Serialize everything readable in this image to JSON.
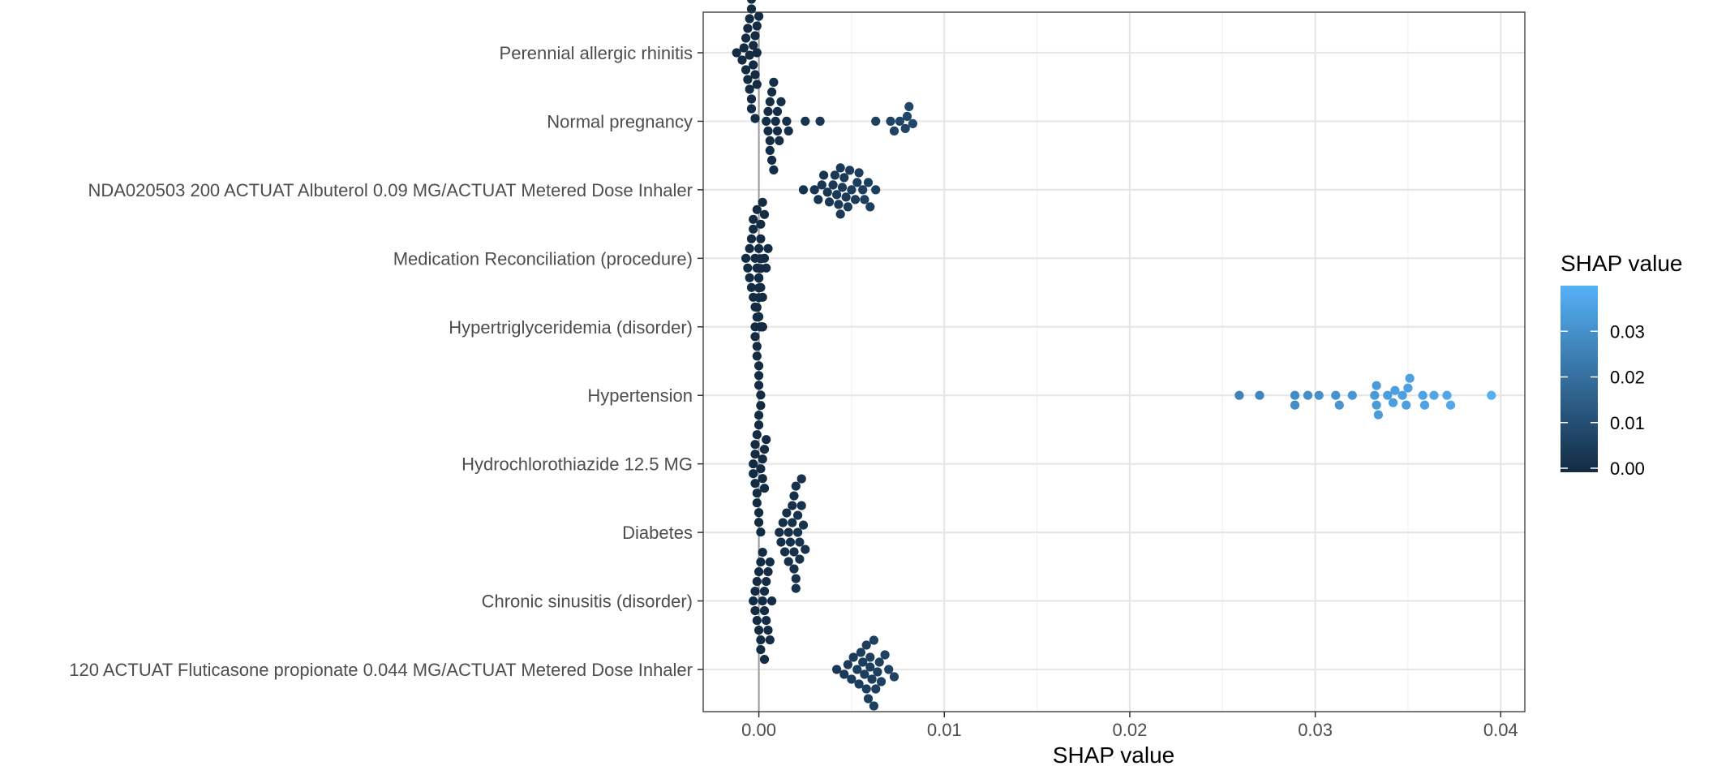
{
  "chart_data": {
    "type": "scatter",
    "subtype": "beeswarm",
    "title": "",
    "xlabel": "SHAP value",
    "ylabel": "",
    "xlim": [
      -0.003,
      0.0413
    ],
    "x_ticks": [
      0.0,
      0.01,
      0.02,
      0.03,
      0.04
    ],
    "x_tick_labels": [
      "0.00",
      "0.01",
      "0.02",
      "0.03",
      "0.04"
    ],
    "grid": true,
    "zero_line": true,
    "categories": [
      "Perennial allergic rhinitis",
      "Normal pregnancy",
      "NDA020503 200 ACTUAT Albuterol 0.09 MG/ACTUAT Metered Dose Inhaler",
      "Medication Reconciliation (procedure)",
      "Hypertriglyceridemia (disorder)",
      "Hypertension",
      "Hydrochlorothiazide 12.5 MG",
      "Diabetes",
      "Chronic sinusitis (disorder)",
      "120 ACTUAT Fluticasone propionate 0.044 MG/ACTUAT Metered Dose Inhaler"
    ],
    "series": [
      {
        "category": "Perennial allergic rhinitis",
        "values": [
          -0.0012,
          -0.0009,
          -0.0008,
          -0.0007,
          -0.0006,
          -0.0006,
          -0.0005,
          -0.0005,
          -0.0005,
          -0.0004,
          -0.0004,
          -0.0004,
          -0.0003,
          -0.0003,
          -0.0003,
          -0.0002,
          -0.0002,
          -0.0002,
          -0.0001,
          -0.0001,
          -0.0001,
          0.0,
          -0.0007,
          -0.0004
        ]
      },
      {
        "category": "Normal pregnancy",
        "values": [
          0.0004,
          0.0005,
          0.0005,
          0.0006,
          0.0006,
          0.0007,
          0.0008,
          0.0008,
          0.0009,
          0.001,
          0.001,
          0.0011,
          0.0012,
          0.0015,
          0.0016,
          0.0025,
          0.0033,
          0.0063,
          0.0071,
          0.0073,
          0.0076,
          0.0079,
          0.008,
          0.0081,
          0.0083,
          0.0006,
          0.0007
        ]
      },
      {
        "category": "NDA020503 200 ACTUAT Albuterol 0.09 MG/ACTUAT Metered Dose Inhaler",
        "values": [
          0.0024,
          0.003,
          0.0032,
          0.0034,
          0.0035,
          0.0037,
          0.0038,
          0.004,
          0.0041,
          0.0042,
          0.0043,
          0.0044,
          0.0045,
          0.0046,
          0.0047,
          0.0048,
          0.005,
          0.0052,
          0.0053,
          0.0054,
          0.0056,
          0.0057,
          0.0059,
          0.006,
          0.0063,
          0.0044,
          0.0049
        ]
      },
      {
        "category": "Medication Reconciliation (procedure)",
        "values": [
          -0.0007,
          -0.0006,
          -0.0005,
          -0.0005,
          -0.0004,
          -0.0004,
          -0.0003,
          -0.0003,
          -0.0002,
          -0.0002,
          -0.0001,
          -0.0001,
          0.0,
          0.0,
          0.0001,
          0.0001,
          0.0002,
          0.0002,
          0.0003,
          0.0003,
          0.0004,
          0.0005,
          -0.0003,
          0.0001,
          0.0
        ]
      },
      {
        "category": "Hypertriglyceridemia (disorder)",
        "values": [
          -0.0002,
          -0.0002,
          -0.0001,
          -0.0001,
          -0.0001,
          -0.0001,
          0.0,
          0.0,
          0.0,
          0.0,
          0.0,
          0.0,
          0.0001,
          0.0001,
          0.0001,
          0.0001,
          0.0001,
          0.0002,
          0.0002,
          0.0002
        ]
      },
      {
        "category": "Hypertension",
        "values": [
          0.0259,
          0.027,
          0.0289,
          0.0289,
          0.0296,
          0.0302,
          0.0311,
          0.0313,
          0.032,
          0.0332,
          0.0333,
          0.0333,
          0.0334,
          0.0339,
          0.0342,
          0.0343,
          0.0347,
          0.0349,
          0.035,
          0.0351,
          0.0358,
          0.0359,
          0.0364,
          0.0371,
          0.0373,
          0.0395
        ]
      },
      {
        "category": "Hydrochlorothiazide 12.5 MG",
        "values": [
          -0.0003,
          -0.0003,
          -0.0002,
          -0.0002,
          -0.0002,
          -0.0001,
          -0.0001,
          -0.0001,
          0.0,
          0.0,
          0.0,
          0.0,
          0.0001,
          0.0001,
          0.0001,
          0.0002,
          0.0002,
          0.0003,
          0.0003,
          0.0004
        ]
      },
      {
        "category": "Diabetes",
        "values": [
          0.0011,
          0.0012,
          0.0013,
          0.0014,
          0.0015,
          0.0016,
          0.0016,
          0.0017,
          0.0018,
          0.0018,
          0.0019,
          0.0019,
          0.002,
          0.002,
          0.0021,
          0.0021,
          0.0022,
          0.0022,
          0.0023,
          0.0023,
          0.0024,
          0.0025,
          0.0019,
          0.002
        ]
      },
      {
        "category": "Chronic sinusitis (disorder)",
        "values": [
          -0.0003,
          -0.0002,
          -0.0002,
          -0.0001,
          -0.0001,
          0.0,
          0.0,
          0.0001,
          0.0001,
          0.0002,
          0.0002,
          0.0003,
          0.0003,
          0.0004,
          0.0004,
          0.0005,
          0.0005,
          0.0006,
          0.0006,
          0.0007,
          0.0003,
          0.0001
        ]
      },
      {
        "category": "120 ACTUAT Fluticasone propionate 0.044 MG/ACTUAT Metered Dose Inhaler",
        "values": [
          0.0042,
          0.0046,
          0.0048,
          0.005,
          0.0051,
          0.0053,
          0.0054,
          0.0055,
          0.0056,
          0.0057,
          0.0058,
          0.0059,
          0.006,
          0.006,
          0.0061,
          0.0062,
          0.0063,
          0.0064,
          0.0065,
          0.0066,
          0.0068,
          0.007,
          0.0073,
          0.0058,
          0.0062
        ]
      }
    ],
    "color_scale": {
      "legend_title": "SHAP value",
      "min": 0.0,
      "max": 0.04,
      "low_color": "#132B43",
      "high_color": "#56B1F7",
      "ticks": [
        0.0,
        0.01,
        0.02,
        0.03
      ],
      "tick_labels": [
        "0.00",
        "0.01",
        "0.02",
        "0.03"
      ]
    },
    "legend_position": "right"
  }
}
